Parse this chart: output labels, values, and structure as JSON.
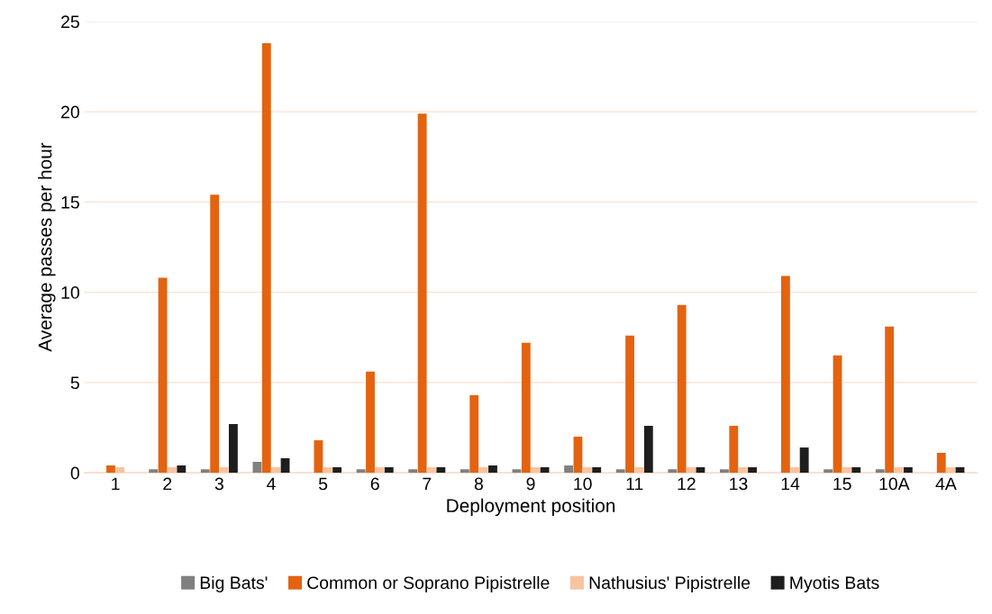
{
  "chart_data": {
    "type": "bar",
    "xlabel": "Deployment position",
    "ylabel": "Average passes per hour",
    "categories": [
      "1",
      "2",
      "3",
      "4",
      "5",
      "6",
      "7",
      "8",
      "9",
      "10",
      "11",
      "12",
      "13",
      "14",
      "15",
      "10A",
      "4A"
    ],
    "series": [
      {
        "name": "Big Bats'",
        "color": "#808080",
        "values": [
          0,
          0.2,
          0.2,
          0.6,
          0,
          0.2,
          0.2,
          0.2,
          0.2,
          0.4,
          0.2,
          0.2,
          0.2,
          0,
          0.2,
          0.2,
          0
        ]
      },
      {
        "name": "Common or Soprano Pipistrelle",
        "color": "#e36310",
        "values": [
          0.4,
          10.8,
          15.4,
          23.8,
          1.8,
          5.6,
          19.9,
          4.3,
          7.2,
          2.0,
          7.6,
          9.3,
          2.6,
          10.9,
          6.5,
          8.1,
          1.1
        ]
      },
      {
        "name": "Nathusius' Pipistrelle",
        "color": "#f8c4a0",
        "values": [
          0.3,
          0.3,
          0.3,
          0.3,
          0.3,
          0.3,
          0.3,
          0.3,
          0.3,
          0.3,
          0.3,
          0.3,
          0.3,
          0.3,
          0.3,
          0.3,
          0.3
        ]
      },
      {
        "name": "Myotis Bats",
        "color": "#1e1e1e",
        "values": [
          0,
          0.4,
          2.7,
          0.8,
          0.3,
          0.3,
          0.3,
          0.4,
          0.3,
          0.3,
          2.6,
          0.3,
          0.3,
          1.4,
          0.3,
          0.3,
          0.3
        ]
      }
    ],
    "ylim": [
      0,
      25
    ],
    "yticks": [
      0,
      5,
      10,
      15,
      20,
      25
    ],
    "grid": "y",
    "legend": "bottom"
  }
}
